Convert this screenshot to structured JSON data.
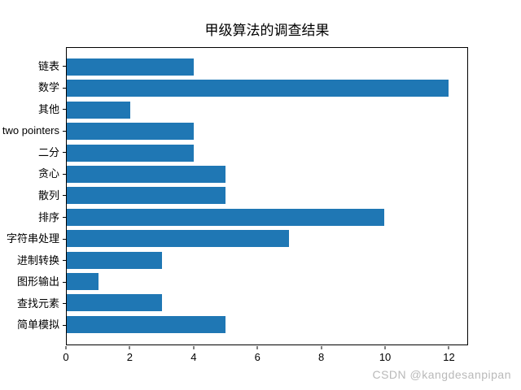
{
  "figure": {
    "watermark": "CSDN @kangdesanpipan"
  },
  "chart_data": {
    "type": "bar",
    "orientation": "horizontal",
    "title": "甲级算法的调查结果",
    "categories": [
      "链表",
      "数学",
      "其他",
      "two pointers",
      "二分",
      "贪心",
      "散列",
      "排序",
      "字符串处理",
      "进制转换",
      "图形输出",
      "查找元素",
      "简单模拟"
    ],
    "values": [
      4,
      12,
      2,
      4,
      4,
      5,
      5,
      10,
      7,
      3,
      1,
      3,
      5
    ],
    "xlabel": "",
    "ylabel": "",
    "xlim": [
      0,
      12.6
    ],
    "xticks": [
      0,
      2,
      4,
      6,
      8,
      10,
      12
    ],
    "grid": false,
    "legend_position": "none",
    "colors": {
      "bar": "#1f77b4",
      "axis": "#000000",
      "text": "#000000",
      "watermark": "#b9b9b9",
      "background": "#ffffff"
    }
  }
}
